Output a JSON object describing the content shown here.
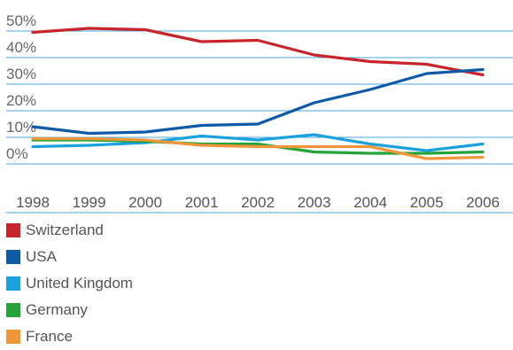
{
  "chart_data": {
    "type": "line",
    "title": "",
    "xlabel": "",
    "ylabel": "",
    "x": [
      "1998",
      "1999",
      "2000",
      "2001",
      "2002",
      "2003",
      "2004",
      "2005",
      "2006"
    ],
    "y_ticks": [
      "50%",
      "40%",
      "30%",
      "20%",
      "10%",
      "0%"
    ],
    "ylim": [
      0,
      50
    ],
    "grid": true,
    "legend_position": "bottom-left",
    "series": [
      {
        "name": "Switzerland",
        "color": "#c8242b",
        "values": [
          49.5,
          51,
          50.5,
          46,
          46.5,
          41,
          38.5,
          37.5,
          33.5
        ]
      },
      {
        "name": "USA",
        "color": "#0e5aa7",
        "values": [
          14,
          11.5,
          12,
          14.5,
          15,
          23,
          28,
          34,
          35.5
        ]
      },
      {
        "name": "United Kingdom",
        "color": "#1ba1dd",
        "values": [
          6.5,
          7,
          8,
          10.5,
          9,
          11,
          7.5,
          5,
          7.5
        ]
      },
      {
        "name": "Germany",
        "color": "#24a33b",
        "values": [
          9,
          9,
          8.5,
          7.5,
          7.5,
          4.5,
          4,
          4,
          4.5
        ]
      },
      {
        "name": "France",
        "color": "#f0963a",
        "values": [
          9.5,
          9.5,
          9,
          7,
          6.5,
          6.5,
          6.5,
          2,
          2.5
        ]
      }
    ]
  }
}
